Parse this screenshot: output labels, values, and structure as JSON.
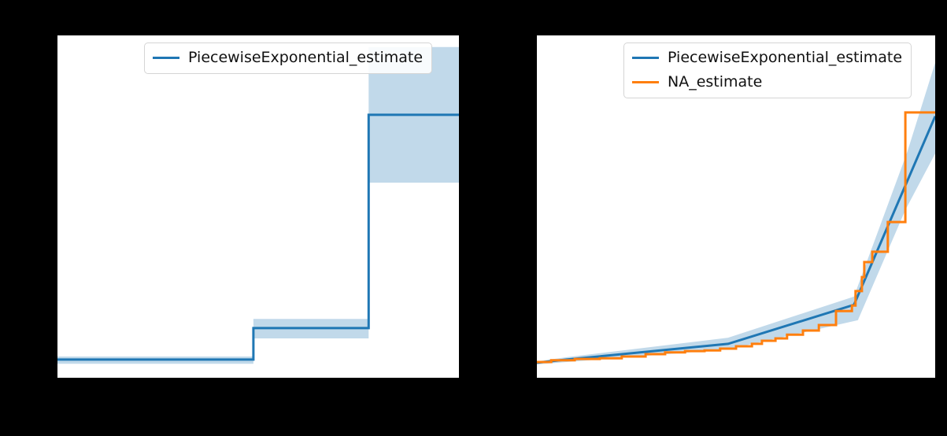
{
  "figure": {
    "background": "#000000",
    "axes_background": "#ffffff"
  },
  "colors": {
    "blue": "#1f77b4",
    "orange": "#ff7f0e",
    "ci_band": "#1f77b4",
    "ci_band_opacity": 0.28,
    "legend_border": "#d5d5d5",
    "legend_background": "#ffffff",
    "text": "#111111"
  },
  "chart_data": [
    {
      "type": "line",
      "title": "",
      "xlabel": "",
      "ylabel": "",
      "note": "Left subplot: piecewise-constant (step) cumulative-hazard style curve with confidence band. No axis tick labels, titles or axis text are visible in the screenshot (black figure background hides axis text). All coordinates are fractions of the plot area: x=0 left edge, x=1 right edge, y=0 bottom edge, y=1 top edge.",
      "grid": false,
      "legend": {
        "position": "upper center",
        "entries": [
          {
            "label": "PiecewiseExponential_estimate",
            "color": "#1f77b4"
          }
        ]
      },
      "series": [
        {
          "kind": "step-band",
          "name": "confidence-band",
          "color": "#1f77b4",
          "opacity": 0.28,
          "segments": [
            [
              0.0,
              0.488,
              0.041,
              0.062
            ],
            [
              0.488,
              0.775,
              0.115,
              0.172
            ],
            [
              0.775,
              1.0,
              0.57,
              0.966
            ]
          ]
        },
        {
          "kind": "step-line",
          "name": "PiecewiseExponential_estimate",
          "color": "#1f77b4",
          "width": 3,
          "x0": 0.0,
          "y0": 0.053,
          "steps": [
            [
              0.488,
              0.145
            ],
            [
              0.775,
              0.768
            ]
          ],
          "x_end": 1.0
        }
      ]
    },
    {
      "type": "line",
      "title": "",
      "xlabel": "",
      "ylabel": "",
      "note": "Right subplot: smooth piecewise-exponential cumulative-hazard curve with confidence band (blue) compared to a Nelson-Aalen step estimate (orange). No axis tick labels, titles or axis text are visible in the screenshot. All coordinates are fractions of the plot area: x=0 left edge, x=1 right edge, y=0 bottom edge, y=1 top edge.",
      "grid": false,
      "legend": {
        "position": "upper center",
        "entries": [
          {
            "label": "PiecewiseExponential_estimate",
            "color": "#1f77b4"
          },
          {
            "label": "NA_estimate",
            "color": "#ff7f0e"
          }
        ]
      },
      "series": [
        {
          "kind": "band",
          "name": "confidence-band",
          "color": "#1f77b4",
          "opacity": 0.28,
          "upper": [
            [
              0.0,
              0.048
            ],
            [
              0.075,
              0.06
            ],
            [
              0.48,
              0.117
            ],
            [
              0.796,
              0.237
            ],
            [
              0.93,
              0.66
            ],
            [
              1.0,
              0.92
            ]
          ],
          "lower": [
            [
              0.0,
              0.039
            ],
            [
              0.075,
              0.046
            ],
            [
              0.48,
              0.083
            ],
            [
              0.806,
              0.168
            ],
            [
              0.925,
              0.49
            ],
            [
              1.0,
              0.655
            ]
          ]
        },
        {
          "kind": "polyline",
          "name": "PiecewiseExponential_estimate",
          "color": "#1f77b4",
          "width": 3,
          "points": [
            [
              0.0,
              0.044
            ],
            [
              0.075,
              0.053
            ],
            [
              0.48,
              0.099
            ],
            [
              0.796,
              0.213
            ],
            [
              1.0,
              0.764
            ]
          ]
        },
        {
          "kind": "step-line",
          "name": "NA_estimate",
          "color": "#ff7f0e",
          "width": 3,
          "x0": 0.0,
          "y0": 0.046,
          "steps": [
            [
              0.036,
              0.051
            ],
            [
              0.095,
              0.055
            ],
            [
              0.158,
              0.057
            ],
            [
              0.213,
              0.062
            ],
            [
              0.273,
              0.069
            ],
            [
              0.322,
              0.074
            ],
            [
              0.372,
              0.078
            ],
            [
              0.421,
              0.08
            ],
            [
              0.46,
              0.085
            ],
            [
              0.5,
              0.092
            ],
            [
              0.54,
              0.099
            ],
            [
              0.565,
              0.108
            ],
            [
              0.599,
              0.115
            ],
            [
              0.628,
              0.126
            ],
            [
              0.668,
              0.138
            ],
            [
              0.708,
              0.154
            ],
            [
              0.751,
              0.195
            ],
            [
              0.791,
              0.211
            ],
            [
              0.8,
              0.253
            ],
            [
              0.816,
              0.294
            ],
            [
              0.822,
              0.338
            ],
            [
              0.842,
              0.368
            ],
            [
              0.881,
              0.455
            ],
            [
              0.925,
              0.775
            ]
          ],
          "x_end": 1.0
        }
      ]
    }
  ]
}
